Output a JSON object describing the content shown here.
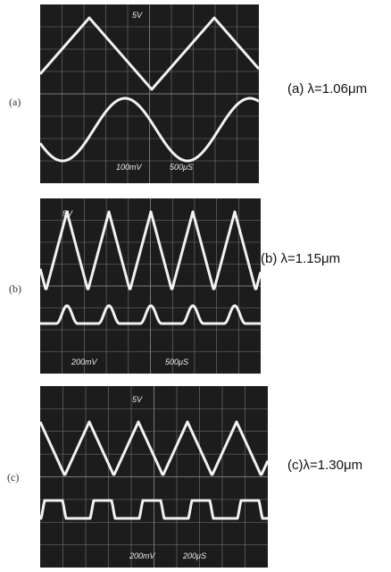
{
  "panels": [
    {
      "label": "(a)",
      "caption": "(a) λ=1.06μm",
      "scope_labels": [
        "5V",
        "100mV",
        "500μS"
      ]
    },
    {
      "label": "(b)",
      "caption": "(b) λ=1.15μm",
      "scope_labels": [
        "5V",
        "200mV",
        "500μS"
      ]
    },
    {
      "label": "(c)",
      "caption": "(c)λ=1.30μm",
      "scope_labels": [
        "5V",
        "200mV",
        "200μS"
      ]
    }
  ]
}
